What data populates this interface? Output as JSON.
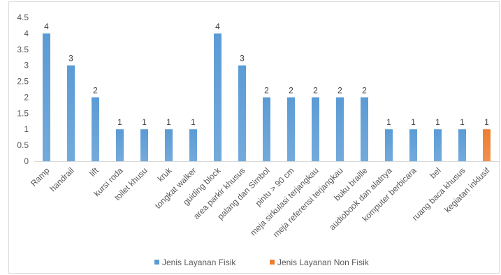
{
  "chart_data": {
    "type": "bar",
    "categories": [
      "Ramp",
      "handrail",
      "lift",
      "kursi roda",
      "toilet khusu",
      "kruk",
      "tongkat walker",
      "guiding block",
      "area parkir khusus",
      "palang dan Simbol",
      "pintu > 90 cm",
      "meja sirkulasi terjangkau",
      "meja referensi terjangkau",
      "buku braille",
      "audiobook dan alatnya",
      "komputer berbicara",
      "bel",
      "ruang baca khusus",
      "kegiatan inklusif"
    ],
    "series": [
      {
        "name": "Jenis Layanan Fisik",
        "color": "#5b9bd5",
        "values": [
          4,
          3,
          2,
          1,
          1,
          1,
          1,
          4,
          3,
          2,
          2,
          2,
          2,
          2,
          1,
          1,
          1,
          1,
          null
        ]
      },
      {
        "name": "Jenis Layanan Non Fisik",
        "color": "#ed7d31",
        "values": [
          null,
          null,
          null,
          null,
          null,
          null,
          null,
          null,
          null,
          null,
          null,
          null,
          null,
          null,
          null,
          null,
          null,
          null,
          1
        ]
      }
    ],
    "y_ticks": [
      "0",
      "0.5",
      "1",
      "1.5",
      "2",
      "2.5",
      "3",
      "3.5",
      "4",
      "4.5"
    ],
    "ylim": [
      0,
      4.5
    ],
    "legend_position": "bottom",
    "grid": false
  }
}
